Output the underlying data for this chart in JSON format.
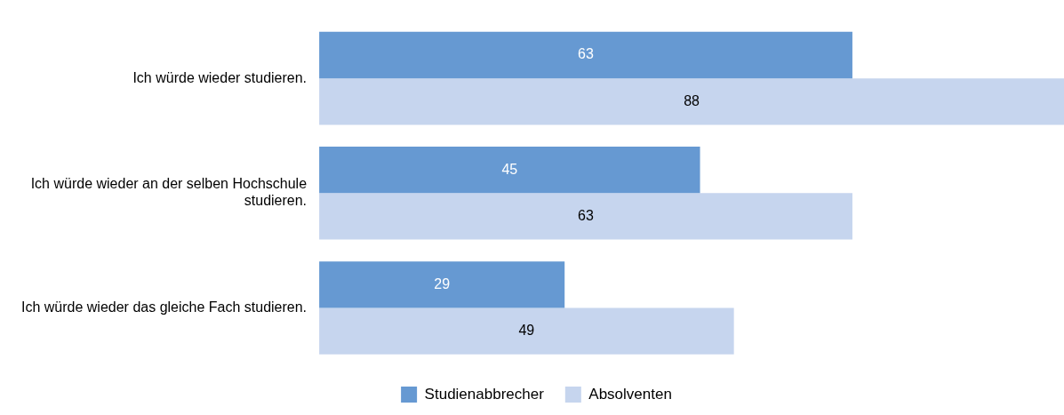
{
  "chart_data": {
    "type": "bar",
    "orientation": "horizontal",
    "categories": [
      "Ich würde wieder studieren.",
      "Ich würde wieder an der selben Hochschule studieren.",
      "Ich würde wieder das gleiche Fach studieren."
    ],
    "series": [
      {
        "name": "Studienabbrecher",
        "color": "#6699d2",
        "values": [
          63,
          45,
          29
        ]
      },
      {
        "name": "Absolventen",
        "color": "#c6d5ee",
        "values": [
          88,
          63,
          49
        ]
      }
    ],
    "data_labels": true,
    "legend": "bottom",
    "tick_labels": "y"
  }
}
